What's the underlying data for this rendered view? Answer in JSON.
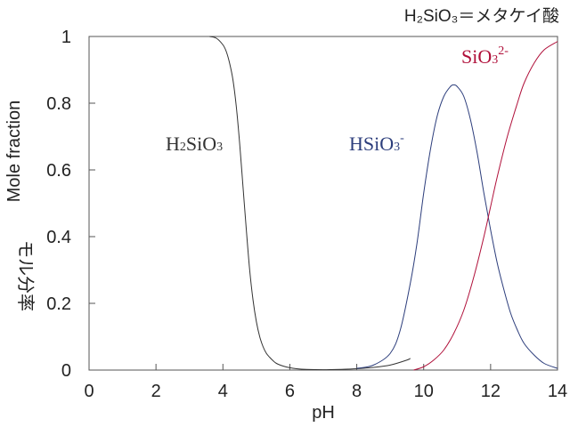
{
  "chart_data": {
    "type": "line",
    "title": "H₂SiO₃＝メタケイ酸",
    "xlabel": "pH",
    "ylabel_en": "Mole fraction",
    "ylabel_ja": "モル分率",
    "xlim": [
      0,
      14
    ],
    "ylim": [
      0,
      1
    ],
    "xticks": [
      "0",
      "2",
      "4",
      "6",
      "8",
      "10",
      "12",
      "14"
    ],
    "yticks": [
      "0",
      "0.2",
      "0.4",
      "0.6",
      "0.8",
      "1"
    ],
    "grid": false,
    "series": [
      {
        "name": "H₂SiO₃",
        "label_parts": [
          "H",
          "2",
          "SiO",
          "3",
          ""
        ],
        "color": "#333333",
        "x": [
          3.6,
          3.8,
          4.0,
          4.1,
          4.2,
          4.3,
          4.4,
          4.5,
          4.6,
          4.7,
          4.8,
          4.9,
          5.0,
          5.1,
          5.2,
          5.3,
          5.4,
          5.5,
          5.6,
          5.8,
          6.0,
          6.2,
          6.5,
          7.0,
          7.5,
          8.0,
          8.5,
          9.0,
          9.5,
          9.6
        ],
        "y": [
          1.0,
          0.995,
          0.975,
          0.955,
          0.92,
          0.87,
          0.79,
          0.68,
          0.55,
          0.42,
          0.3,
          0.21,
          0.145,
          0.1,
          0.07,
          0.05,
          0.038,
          0.028,
          0.02,
          0.012,
          0.007,
          0.004,
          0.002,
          0.001,
          0.002,
          0.004,
          0.008,
          0.015,
          0.03,
          0.035
        ]
      },
      {
        "name": "HSiO₃⁻",
        "label_parts": [
          "HSiO",
          "3",
          "-"
        ],
        "color": "#2d3e7c",
        "x": [
          8.0,
          8.5,
          9.0,
          9.3,
          9.6,
          9.8,
          10.0,
          10.2,
          10.4,
          10.6,
          10.8,
          10.9,
          11.0,
          11.2,
          11.4,
          11.6,
          11.8,
          12.0,
          12.2,
          12.4,
          12.6,
          12.8,
          13.0,
          13.3,
          13.6,
          14.0
        ],
        "y": [
          0.005,
          0.015,
          0.05,
          0.12,
          0.26,
          0.38,
          0.53,
          0.66,
          0.76,
          0.82,
          0.85,
          0.855,
          0.85,
          0.82,
          0.75,
          0.65,
          0.53,
          0.42,
          0.32,
          0.24,
          0.17,
          0.12,
          0.08,
          0.045,
          0.02,
          0.005
        ]
      },
      {
        "name": "SiO₃²⁻",
        "label_parts": [
          "SiO",
          "3",
          "2-"
        ],
        "color": "#b0103a",
        "x": [
          9.7,
          10.0,
          10.3,
          10.6,
          10.9,
          11.2,
          11.5,
          11.8,
          12.0,
          12.2,
          12.5,
          12.8,
          13.0,
          13.3,
          13.6,
          14.0
        ],
        "y": [
          0.0,
          0.01,
          0.03,
          0.06,
          0.11,
          0.18,
          0.28,
          0.4,
          0.49,
          0.58,
          0.7,
          0.8,
          0.86,
          0.92,
          0.96,
          0.985
        ]
      }
    ]
  }
}
